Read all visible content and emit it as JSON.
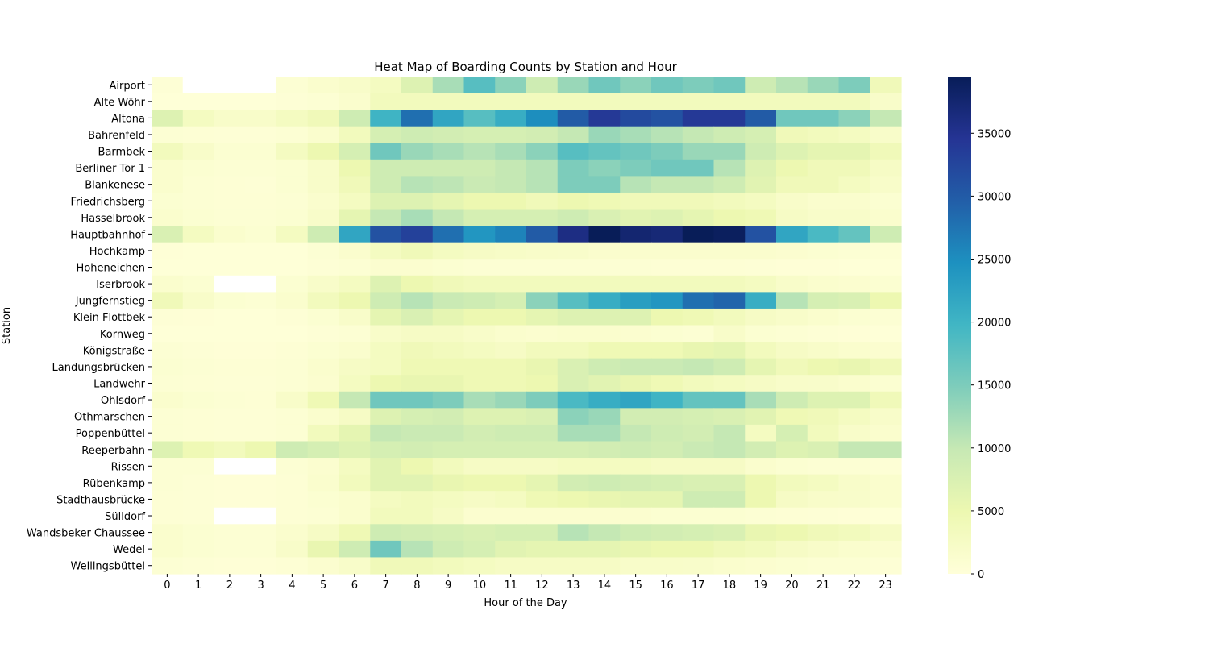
{
  "chart_data": {
    "type": "heatmap",
    "title": "Heat Map of Boarding Counts by Station and Hour",
    "xlabel": "Hour of the Day",
    "ylabel": "Station",
    "x": [
      0,
      1,
      2,
      3,
      4,
      5,
      6,
      7,
      8,
      9,
      10,
      11,
      12,
      13,
      14,
      15,
      16,
      17,
      18,
      19,
      20,
      21,
      22,
      23
    ],
    "y": [
      "Airport",
      "Alte Wöhr",
      "Altona",
      "Bahrenfeld",
      "Barmbek",
      "Berliner Tor 1",
      "Blankenese",
      "Friedrichsberg",
      "Hasselbrook",
      "Hauptbahnhof",
      "Hochkamp",
      "Hoheneichen",
      "Iserbrook",
      "Jungfernstieg",
      "Klein Flottbek",
      "Kornweg",
      "Königstraße",
      "Landungsbrücken",
      "Landwehr",
      "Ohlsdorf",
      "Othmarschen",
      "Poppenbüttel",
      "Reeperbahn",
      "Rissen",
      "Rübenkamp",
      "Stadthausbrücke",
      "Sülldorf",
      "Wandsbeker Chaussee",
      "Wedel",
      "Wellingsbüttel"
    ],
    "values": [
      [
        500,
        null,
        null,
        null,
        800,
        1500,
        2000,
        3000,
        7000,
        12000,
        18000,
        14000,
        9000,
        13000,
        16000,
        14000,
        16000,
        15000,
        16000,
        9000,
        11000,
        13000,
        15000,
        4000
      ],
      [
        300,
        200,
        200,
        200,
        500,
        800,
        1500,
        3500,
        3500,
        3500,
        3500,
        3500,
        3500,
        3500,
        3500,
        3500,
        3500,
        3500,
        3500,
        3500,
        3500,
        3500,
        3500,
        2000
      ],
      [
        7000,
        3000,
        2000,
        2000,
        3000,
        4000,
        9000,
        20000,
        28000,
        22000,
        18000,
        21000,
        25000,
        30000,
        34000,
        32000,
        31000,
        34000,
        34000,
        30000,
        16000,
        16000,
        14000,
        10000
      ],
      [
        800,
        600,
        500,
        500,
        700,
        1500,
        3500,
        8000,
        9000,
        8500,
        8000,
        8000,
        8500,
        10000,
        13000,
        12000,
        11000,
        10000,
        9000,
        8000,
        4000,
        3500,
        3000,
        2000
      ],
      [
        3500,
        2000,
        1000,
        1000,
        3000,
        5000,
        8000,
        16000,
        13000,
        12000,
        11000,
        12000,
        14000,
        18000,
        17000,
        16000,
        15000,
        13000,
        13000,
        9000,
        7000,
        6000,
        6000,
        4000
      ],
      [
        1500,
        1000,
        800,
        700,
        1000,
        2000,
        5000,
        9000,
        9000,
        9000,
        9000,
        10000,
        11000,
        15000,
        14000,
        15000,
        16000,
        16000,
        11000,
        7000,
        5000,
        4000,
        4000,
        2500
      ],
      [
        1500,
        800,
        600,
        500,
        1000,
        2000,
        4000,
        9000,
        11000,
        10500,
        9500,
        10000,
        11000,
        15000,
        15000,
        11000,
        10000,
        10000,
        9000,
        6500,
        4000,
        4000,
        3000,
        2000
      ],
      [
        1000,
        700,
        600,
        600,
        800,
        1500,
        3000,
        7000,
        7000,
        6000,
        5000,
        5000,
        4000,
        5000,
        4500,
        4000,
        4000,
        4000,
        3500,
        3000,
        2000,
        1500,
        1500,
        1000
      ],
      [
        1500,
        1000,
        800,
        700,
        1000,
        2000,
        6000,
        10000,
        12000,
        10000,
        8000,
        8000,
        8000,
        9000,
        7500,
        6500,
        7000,
        6000,
        5000,
        4500,
        2500,
        2000,
        2000,
        1500
      ],
      [
        7500,
        3000,
        1500,
        1000,
        3000,
        9000,
        22000,
        31000,
        33000,
        28000,
        24000,
        26000,
        30000,
        36000,
        39500,
        37500,
        37000,
        39500,
        39000,
        31000,
        22000,
        19000,
        17000,
        9000
      ],
      [
        400,
        300,
        200,
        200,
        300,
        800,
        1500,
        3000,
        4000,
        3000,
        2500,
        2200,
        2000,
        1800,
        1500,
        1500,
        1500,
        1500,
        1500,
        1500,
        1200,
        1000,
        800,
        600
      ],
      [
        200,
        200,
        200,
        200,
        300,
        500,
        800,
        1200,
        1200,
        1000,
        800,
        800,
        700,
        700,
        700,
        700,
        600,
        600,
        600,
        500,
        400,
        400,
        300,
        300
      ],
      [
        1500,
        1000,
        null,
        null,
        1000,
        2000,
        3000,
        7000,
        5000,
        4000,
        3500,
        3500,
        3500,
        3500,
        3500,
        3500,
        3500,
        3500,
        3500,
        3000,
        2000,
        1500,
        1200,
        1000
      ],
      [
        4000,
        2000,
        1000,
        800,
        1500,
        3500,
        5000,
        9000,
        11000,
        9500,
        9000,
        8000,
        14000,
        18000,
        21000,
        23000,
        24000,
        28000,
        29000,
        21000,
        11000,
        8000,
        7500,
        5000
      ],
      [
        500,
        400,
        300,
        300,
        500,
        1000,
        2000,
        6000,
        7500,
        6000,
        5000,
        5000,
        6000,
        7000,
        7000,
        7000,
        5000,
        4500,
        3500,
        2500,
        2000,
        1500,
        1000,
        700
      ],
      [
        300,
        200,
        200,
        200,
        300,
        500,
        800,
        2000,
        2500,
        2500,
        2000,
        1500,
        1200,
        1500,
        1500,
        1200,
        1000,
        800,
        2000,
        1000,
        700,
        500,
        400,
        300
      ],
      [
        800,
        500,
        400,
        400,
        600,
        1000,
        1500,
        3000,
        4000,
        3500,
        3000,
        2500,
        3500,
        3500,
        4500,
        4500,
        4500,
        5500,
        6000,
        3500,
        2500,
        2000,
        1500,
        1200
      ],
      [
        1000,
        700,
        600,
        600,
        800,
        1500,
        2500,
        3000,
        4500,
        4500,
        4500,
        4500,
        5500,
        7500,
        9000,
        9500,
        9500,
        10000,
        9000,
        6000,
        4000,
        5000,
        5500,
        4000
      ],
      [
        800,
        600,
        500,
        500,
        700,
        1200,
        3000,
        5000,
        5500,
        5500,
        4500,
        4500,
        5000,
        7500,
        6500,
        5500,
        4500,
        3500,
        3000,
        2500,
        2000,
        1800,
        1500,
        1000
      ],
      [
        1500,
        1000,
        700,
        600,
        2000,
        4500,
        10000,
        16000,
        16000,
        15000,
        12000,
        13000,
        15000,
        19000,
        21000,
        22000,
        20000,
        17000,
        17000,
        12000,
        9000,
        7000,
        7000,
        4000
      ],
      [
        800,
        600,
        500,
        500,
        700,
        1500,
        2500,
        7000,
        8000,
        8500,
        7000,
        7000,
        7500,
        14000,
        13000,
        8500,
        8500,
        8000,
        7500,
        6500,
        4500,
        4000,
        3000,
        2000
      ],
      [
        800,
        600,
        500,
        500,
        700,
        3500,
        6000,
        10000,
        9500,
        9500,
        8500,
        9000,
        9000,
        12000,
        12000,
        10000,
        9000,
        8500,
        10000,
        3000,
        8000,
        3500,
        2000,
        1500
      ],
      [
        7000,
        4500,
        3500,
        5000,
        9000,
        8000,
        7000,
        8000,
        8500,
        8000,
        8000,
        8000,
        8000,
        8000,
        8500,
        9000,
        8500,
        9500,
        10000,
        8500,
        7000,
        7500,
        10000,
        10000
      ],
      [
        800,
        700,
        null,
        null,
        800,
        1200,
        3000,
        6500,
        5000,
        3500,
        2500,
        2500,
        2500,
        3000,
        3000,
        3000,
        2500,
        2500,
        2500,
        1500,
        1000,
        800,
        700,
        500
      ],
      [
        700,
        500,
        400,
        400,
        600,
        1500,
        3500,
        6500,
        6500,
        5500,
        5000,
        5000,
        6000,
        8500,
        9000,
        8500,
        8000,
        7500,
        7500,
        5000,
        3500,
        3000,
        2000,
        1500
      ],
      [
        600,
        500,
        400,
        400,
        600,
        1000,
        1500,
        3000,
        3500,
        3000,
        2500,
        3000,
        4500,
        5000,
        5500,
        6000,
        6000,
        9000,
        9000,
        5000,
        2500,
        2000,
        1800,
        1500
      ],
      [
        600,
        500,
        null,
        null,
        600,
        800,
        1500,
        3500,
        3500,
        2500,
        1200,
        1200,
        1200,
        1200,
        1200,
        1200,
        1000,
        1000,
        1000,
        800,
        600,
        500,
        400,
        300
      ],
      [
        1500,
        1000,
        800,
        800,
        1500,
        2500,
        4500,
        9000,
        8500,
        8000,
        7500,
        8000,
        8000,
        11000,
        10000,
        9000,
        8500,
        8000,
        7500,
        5500,
        5000,
        4000,
        3500,
        2500
      ],
      [
        1500,
        1000,
        800,
        800,
        2000,
        5500,
        9000,
        16000,
        11000,
        9000,
        8000,
        6500,
        6000,
        6000,
        6000,
        5500,
        5000,
        5000,
        4000,
        3500,
        2500,
        2000,
        1500,
        1200
      ],
      [
        700,
        500,
        400,
        400,
        600,
        1200,
        2000,
        4000,
        4000,
        3500,
        3000,
        2500,
        2500,
        2500,
        2500,
        2000,
        2000,
        1800,
        1500,
        1200,
        1000,
        800,
        700,
        500
      ]
    ],
    "colorbar": {
      "vmin": 0,
      "vmax": 39500,
      "ticks": [
        0,
        5000,
        10000,
        15000,
        20000,
        25000,
        30000,
        35000
      ],
      "colormap": "YlGnBu"
    },
    "missing_color": "#ffffff"
  }
}
